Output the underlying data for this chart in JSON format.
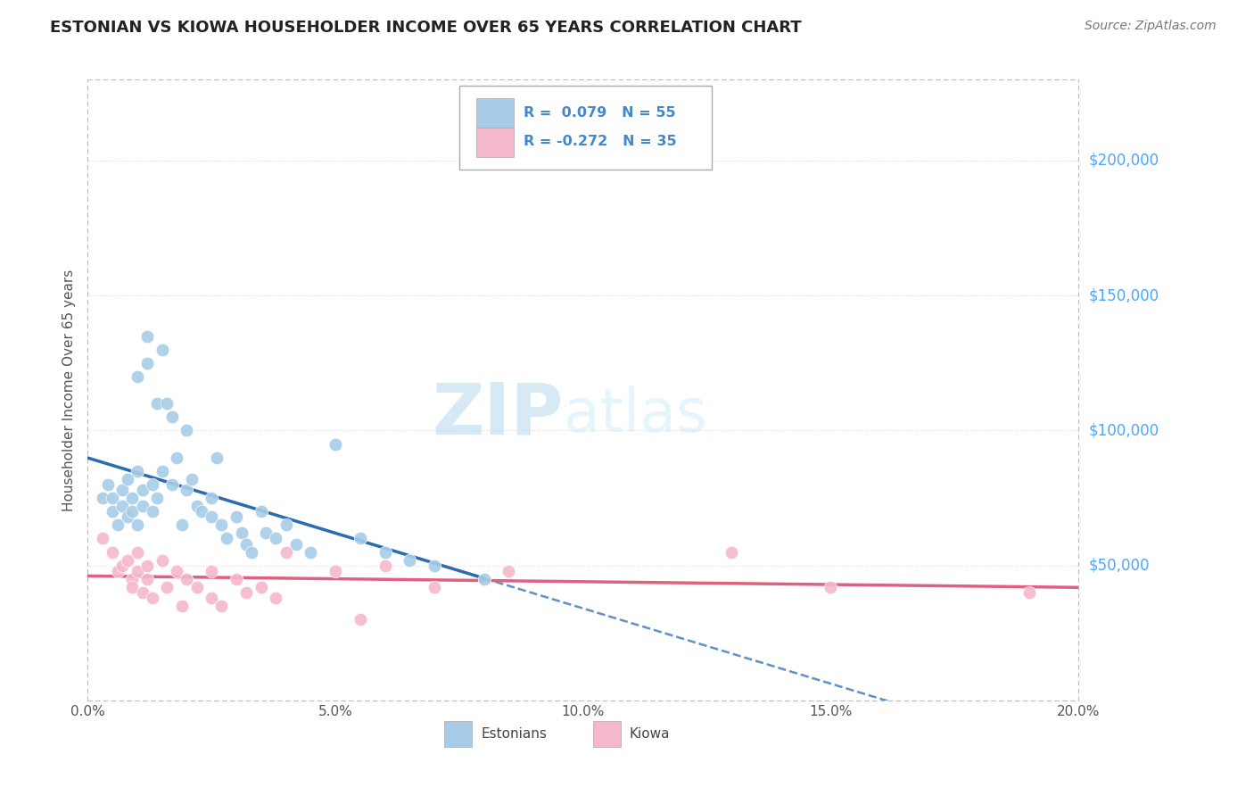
{
  "title": "ESTONIAN VS KIOWA HOUSEHOLDER INCOME OVER 65 YEARS CORRELATION CHART",
  "source": "Source: ZipAtlas.com",
  "ylabel": "Householder Income Over 65 years",
  "xlim": [
    0.0,
    0.2
  ],
  "ylim": [
    0,
    230000
  ],
  "xtick_labels": [
    "0.0%",
    "5.0%",
    "10.0%",
    "15.0%",
    "20.0%"
  ],
  "xtick_vals": [
    0.0,
    0.05,
    0.1,
    0.15,
    0.2
  ],
  "ytick_labels": [
    "$50,000",
    "$100,000",
    "$150,000",
    "$200,000"
  ],
  "ytick_vals": [
    50000,
    100000,
    150000,
    200000
  ],
  "legend_label1": "Estonians",
  "legend_label2": "Kiowa",
  "watermark_zip": "ZIP",
  "watermark_atlas": "atlas",
  "background_color": "#ffffff",
  "plot_bg_color": "#ffffff",
  "grid_color": "#dddddd",
  "estonian_color": "#a8cce8",
  "kiowa_color": "#f5b8cb",
  "estonian_line_color": "#2b6cb0",
  "kiowa_line_color": "#e06080",
  "title_color": "#222222",
  "source_color": "#777777",
  "ylabel_color": "#555555",
  "ytick_label_color": "#4da6ff",
  "r_value_color": "#4488cc",
  "estonian_R": 0.079,
  "kiowa_R": -0.272,
  "estonian_N": 55,
  "kiowa_N": 35,
  "estonian_x": [
    0.003,
    0.004,
    0.005,
    0.005,
    0.006,
    0.007,
    0.007,
    0.008,
    0.008,
    0.009,
    0.009,
    0.01,
    0.01,
    0.01,
    0.011,
    0.011,
    0.012,
    0.012,
    0.013,
    0.013,
    0.014,
    0.014,
    0.015,
    0.015,
    0.016,
    0.017,
    0.017,
    0.018,
    0.019,
    0.02,
    0.02,
    0.021,
    0.022,
    0.023,
    0.025,
    0.025,
    0.026,
    0.027,
    0.028,
    0.03,
    0.031,
    0.032,
    0.033,
    0.035,
    0.036,
    0.038,
    0.04,
    0.042,
    0.045,
    0.05,
    0.055,
    0.06,
    0.065,
    0.07,
    0.08
  ],
  "estonian_y": [
    75000,
    80000,
    70000,
    75000,
    65000,
    78000,
    72000,
    82000,
    68000,
    75000,
    70000,
    120000,
    85000,
    65000,
    78000,
    72000,
    135000,
    125000,
    80000,
    70000,
    110000,
    75000,
    130000,
    85000,
    110000,
    105000,
    80000,
    90000,
    65000,
    100000,
    78000,
    82000,
    72000,
    70000,
    68000,
    75000,
    90000,
    65000,
    60000,
    68000,
    62000,
    58000,
    55000,
    70000,
    62000,
    60000,
    65000,
    58000,
    55000,
    95000,
    60000,
    55000,
    52000,
    50000,
    45000
  ],
  "kiowa_x": [
    0.003,
    0.005,
    0.006,
    0.007,
    0.008,
    0.009,
    0.009,
    0.01,
    0.01,
    0.011,
    0.012,
    0.012,
    0.013,
    0.015,
    0.016,
    0.018,
    0.019,
    0.02,
    0.022,
    0.025,
    0.025,
    0.027,
    0.03,
    0.032,
    0.035,
    0.038,
    0.04,
    0.05,
    0.055,
    0.06,
    0.07,
    0.085,
    0.13,
    0.15,
    0.19
  ],
  "kiowa_y": [
    60000,
    55000,
    48000,
    50000,
    52000,
    45000,
    42000,
    55000,
    48000,
    40000,
    50000,
    45000,
    38000,
    52000,
    42000,
    48000,
    35000,
    45000,
    42000,
    48000,
    38000,
    35000,
    45000,
    40000,
    42000,
    38000,
    55000,
    48000,
    30000,
    50000,
    42000,
    48000,
    55000,
    42000,
    40000
  ]
}
